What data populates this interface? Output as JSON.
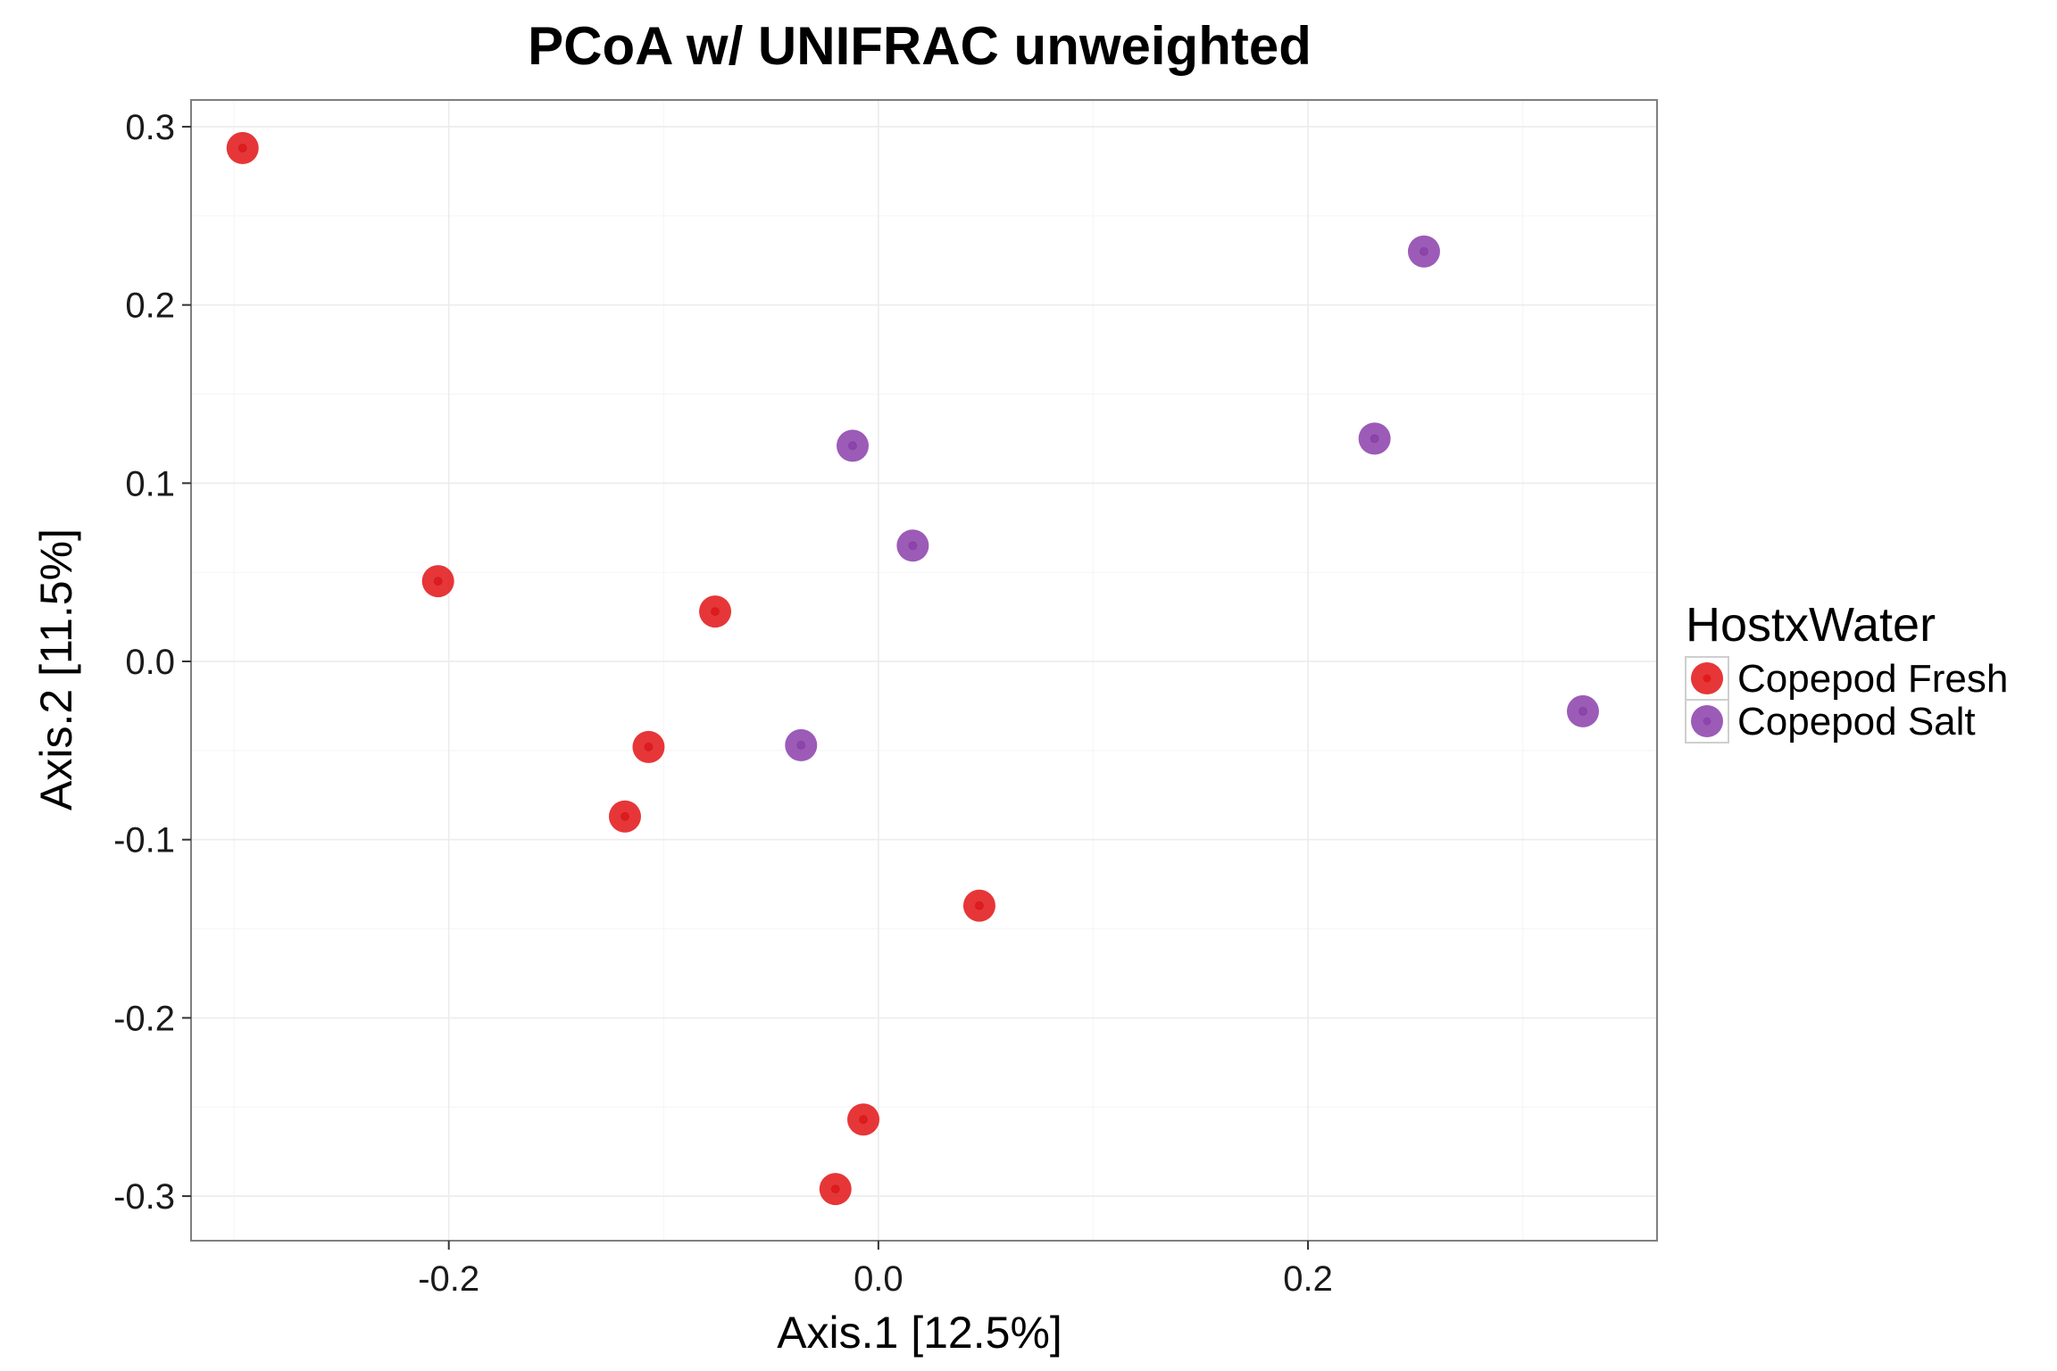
{
  "chart_data": {
    "type": "scatter",
    "title": "PCoA w/ UNIFRAC unweighted",
    "xlabel": "Axis.1   [12.5%]",
    "ylabel": "Axis.2   [11.5%]",
    "xlim": [
      -0.32,
      0.3625
    ],
    "ylim": [
      -0.325,
      0.315
    ],
    "xticks": [
      -0.2,
      0.0,
      0.2
    ],
    "xtick_labels": [
      "-0.2",
      "0.0",
      "0.2"
    ],
    "yticks": [
      -0.3,
      -0.2,
      -0.1,
      0.0,
      0.1,
      0.2,
      0.3
    ],
    "ytick_labels": [
      "-0.3",
      "-0.2",
      "-0.1",
      "0.0",
      "0.1",
      "0.2",
      "0.3"
    ],
    "grid": true,
    "legend": {
      "title": "HostxWater",
      "placement": "right"
    },
    "series": [
      {
        "name": "Copepod Fresh",
        "color": "#e31a1c",
        "x": [
          -0.296,
          -0.205,
          -0.076,
          -0.107,
          -0.118,
          0.047,
          -0.007,
          -0.02
        ],
        "y": [
          0.288,
          0.045,
          0.028,
          -0.048,
          -0.087,
          -0.137,
          -0.257,
          -0.296
        ]
      },
      {
        "name": "Copepod Salt",
        "color": "#8e44ad",
        "x": [
          0.254,
          0.231,
          -0.012,
          0.016,
          -0.036,
          0.328
        ],
        "y": [
          0.23,
          0.125,
          0.121,
          0.065,
          -0.047,
          -0.028
        ]
      }
    ]
  }
}
